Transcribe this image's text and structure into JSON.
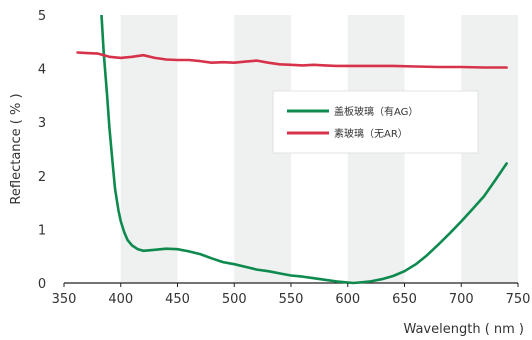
{
  "chart_data": {
    "type": "line",
    "xlabel": "Wavelength ( nm )",
    "ylabel": "Reflectance ( % )",
    "xlim": [
      350,
      750
    ],
    "ylim": [
      0,
      5
    ],
    "x_ticks": [
      350,
      400,
      450,
      500,
      550,
      600,
      650,
      700,
      750
    ],
    "y_ticks": [
      0,
      1,
      2,
      3,
      4,
      5
    ],
    "shaded_bands": [
      [
        400,
        450
      ],
      [
        500,
        550
      ],
      [
        600,
        650
      ],
      [
        700,
        750
      ]
    ],
    "band_color": "#eef1ef",
    "grid": false,
    "legend_position": "upper-right",
    "series": [
      {
        "name": "盖板玻璃（有AG）",
        "color": "#0e8a4f",
        "x": [
          383,
          385,
          388,
          390,
          393,
          395,
          398,
          400,
          403,
          406,
          410,
          415,
          420,
          425,
          430,
          440,
          450,
          460,
          470,
          480,
          490,
          500,
          510,
          520,
          530,
          540,
          550,
          560,
          570,
          580,
          590,
          600,
          605,
          610,
          620,
          630,
          640,
          650,
          660,
          670,
          680,
          690,
          700,
          710,
          720,
          730,
          740
        ],
        "y": [
          5.0,
          4.3,
          3.5,
          2.9,
          2.2,
          1.75,
          1.35,
          1.15,
          0.95,
          0.8,
          0.7,
          0.63,
          0.6,
          0.61,
          0.62,
          0.64,
          0.63,
          0.59,
          0.54,
          0.46,
          0.39,
          0.35,
          0.3,
          0.25,
          0.22,
          0.18,
          0.14,
          0.12,
          0.09,
          0.06,
          0.03,
          0.01,
          0.0,
          0.01,
          0.03,
          0.07,
          0.13,
          0.22,
          0.35,
          0.52,
          0.72,
          0.93,
          1.15,
          1.38,
          1.62,
          1.92,
          2.23
        ]
      },
      {
        "name": "素玻璃（无AR）",
        "color": "#d6334b",
        "x": [
          362,
          370,
          380,
          390,
          400,
          410,
          420,
          430,
          440,
          450,
          460,
          470,
          480,
          490,
          500,
          510,
          520,
          530,
          540,
          550,
          560,
          570,
          580,
          590,
          600,
          620,
          640,
          660,
          680,
          700,
          720,
          740
        ],
        "y": [
          4.3,
          4.29,
          4.28,
          4.22,
          4.2,
          4.22,
          4.25,
          4.2,
          4.17,
          4.16,
          4.16,
          4.14,
          4.11,
          4.12,
          4.11,
          4.13,
          4.15,
          4.11,
          4.08,
          4.07,
          4.06,
          4.07,
          4.06,
          4.05,
          4.05,
          4.05,
          4.05,
          4.04,
          4.03,
          4.03,
          4.02,
          4.02
        ]
      }
    ]
  }
}
